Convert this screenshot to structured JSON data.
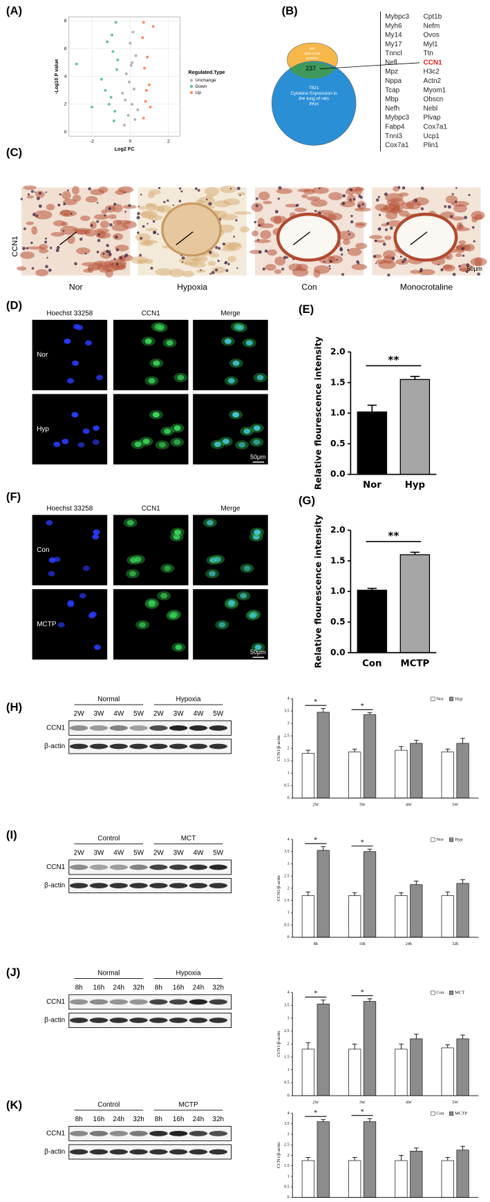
{
  "panel_labels": [
    "(A)",
    "(B)",
    "(C)",
    "(D)",
    "(E)",
    "(F)",
    "(G)",
    "(H)",
    "(I)",
    "(J)",
    "(K)"
  ],
  "venn": {
    "set_a_label": [
      "997",
      "differential",
      "proteins"
    ],
    "overlap": 237,
    "set_b_label": [
      "7821",
      "Cytokine Expression in",
      "the lung of rats",
      "PAH"
    ]
  },
  "gene_table": {
    "highlight": "CCN1",
    "highlight_color": "#e02020",
    "columns": [
      [
        "Mybpc3",
        "Myh6",
        "My14",
        "My17",
        "Tnncl",
        "Nefl",
        "Mpz",
        "Nppa",
        "Tcap",
        "Mbp",
        "Nefh",
        "Mybpc3",
        "Fabp4",
        "Tnni3",
        "Cox7a1"
      ],
      [
        "Cpt1b",
        "Nefm",
        "Ovos",
        "Myl1",
        "Ttn",
        "CCN1",
        "H3c2",
        "Actn2",
        "Myom1",
        "Obscn",
        "Nebl",
        "Plvap",
        "Cox7a1",
        "Ucp1",
        "Plin1"
      ]
    ]
  },
  "ihc": {
    "row_label": "CCN1",
    "labels": [
      "Nor",
      "Hypoxia",
      "Con",
      "Monocrotaline"
    ],
    "scale_bar": "50μm"
  },
  "fluorescence": [
    {
      "columns": [
        "Hoechst 33258",
        "CCN1",
        "Merge"
      ],
      "rows": [
        "Nor",
        "Hyp"
      ],
      "scale_bar": "50μm"
    },
    {
      "columns": [
        "Hoechst 33258",
        "CCN1",
        "Merge"
      ],
      "rows": [
        "Con",
        "MCTP"
      ],
      "scale_bar": "50μm"
    }
  ],
  "blots": [
    {
      "groups": [
        "Normal",
        "Hypoxia"
      ],
      "lanes": [
        "2W",
        "3W",
        "4W",
        "5W",
        "2W",
        "3W",
        "4W",
        "5W"
      ],
      "rows": [
        "CCN1",
        "β-actin"
      ]
    },
    {
      "groups": [
        "Control",
        "MCT"
      ],
      "lanes": [
        "2W",
        "3W",
        "4W",
        "5W",
        "2W",
        "3W",
        "4W",
        "5W"
      ],
      "rows": [
        "CCN1",
        "β-actin"
      ]
    },
    {
      "groups": [
        "Normal",
        "Hypoxia"
      ],
      "lanes": [
        "8h",
        "16h",
        "24h",
        "32h",
        "8h",
        "16h",
        "24h",
        "32h"
      ],
      "rows": [
        "CCN1",
        "β-actin"
      ]
    },
    {
      "groups": [
        "Control",
        "MCTP"
      ],
      "lanes": [
        "8h",
        "16h",
        "24h",
        "32h",
        "8h",
        "16h",
        "24h",
        "32h"
      ],
      "rows": [
        "CCN1",
        "β-actin"
      ]
    }
  ],
  "chart_data": [
    {
      "type": "scatter",
      "xlabel": "Log2 FC",
      "ylabel": "-Log10 P value",
      "legend_title": "Regulated.Type",
      "xlim": [
        -3.2,
        2.6
      ],
      "ylim": [
        -0.3,
        8.3
      ],
      "xticks": [
        -2,
        0,
        2
      ],
      "yticks": [
        0,
        2,
        4,
        6,
        8
      ],
      "grid": true,
      "series": [
        {
          "name": "Unchange",
          "color": "#b3b3b3",
          "x": [
            -0.3,
            -0.1,
            0.1,
            0.2,
            -0.2,
            0.3,
            0.0,
            -0.4,
            0.4,
            0.15,
            -0.05,
            0.05,
            0.25,
            -0.25,
            0.1
          ],
          "y": [
            0.5,
            1.2,
            2.0,
            3.1,
            4.2,
            5.5,
            6.4,
            2.8,
            1.6,
            7.2,
            3.6,
            4.8,
            0.9,
            2.3,
            5.0
          ]
        },
        {
          "name": "Down",
          "color": "#66c2a5",
          "x": [
            -0.8,
            -1.0,
            -1.3,
            -0.7,
            -0.9,
            -1.2,
            -2.8,
            -0.75,
            -1.5,
            -0.85,
            -1.1,
            -0.95,
            -2.0,
            -0.65
          ],
          "y": [
            1.5,
            2.5,
            3.0,
            4.5,
            5.8,
            6.5,
            4.9,
            7.9,
            3.8,
            0.8,
            2.0,
            7.0,
            1.8,
            5.2
          ]
        },
        {
          "name": "Up",
          "color": "#fc8d62",
          "x": [
            0.7,
            0.8,
            1.0,
            0.75,
            0.9,
            1.2,
            0.65,
            0.85,
            1.05,
            0.7
          ],
          "y": [
            1.0,
            2.2,
            3.4,
            4.6,
            5.4,
            7.6,
            6.8,
            3.0,
            1.8,
            7.9
          ]
        }
      ]
    },
    {
      "type": "bar",
      "ylabel": "Relative flourescence intensity",
      "categories": [
        "Nor",
        "Hyp"
      ],
      "values": [
        1.02,
        1.55
      ],
      "errors": [
        0.11,
        0.05
      ],
      "colors": [
        "#000000",
        "#a6a6a6"
      ],
      "ylim": [
        0,
        2
      ],
      "yticks": [
        {
          "value": 0,
          "label": "0.0"
        },
        0.5,
        {
          "value": 1,
          "label": "1.0"
        },
        1.5,
        {
          "value": 2,
          "label": "2.0"
        }
      ],
      "significance": "**"
    },
    {
      "type": "bar",
      "ylabel": "Relative flourescence intensity",
      "categories": [
        "Con",
        "MCTP"
      ],
      "values": [
        1.02,
        1.6
      ],
      "errors": [
        0.03,
        0.04
      ],
      "colors": [
        "#000000",
        "#a6a6a6"
      ],
      "ylim": [
        0,
        2
      ],
      "yticks": [
        {
          "value": 0,
          "label": "0.0"
        },
        0.5,
        {
          "value": 1,
          "label": "1.0"
        },
        1.5,
        {
          "value": 2,
          "label": "2.0"
        }
      ],
      "significance": "**"
    },
    {
      "type": "grouped-bar",
      "ylabel": "CCN1/β-actin",
      "categories": [
        "2W",
        "3W",
        "4W",
        "5W"
      ],
      "ylim": [
        0,
        4
      ],
      "yticks": [
        0,
        0.5,
        1,
        1.5,
        2,
        2.5,
        3,
        3.5,
        4
      ],
      "series": [
        {
          "name": "Nor",
          "color": "#ffffff",
          "values": [
            1.8,
            1.85,
            1.92,
            1.85
          ],
          "errors": [
            0.12,
            0.12,
            0.15,
            0.12
          ]
        },
        {
          "name": "Hyp",
          "color": "#8c8c8c",
          "values": [
            3.45,
            3.35,
            2.2,
            2.2
          ],
          "errors": [
            0.15,
            0.08,
            0.12,
            0.2
          ]
        }
      ],
      "annotations": [
        {
          "category": "2W",
          "text": "*"
        },
        {
          "category": "3W",
          "text": "*"
        }
      ]
    },
    {
      "type": "grouped-bar",
      "ylabel": "CCN1/β-actin",
      "categories": [
        "8h",
        "16h",
        "24h",
        "32h"
      ],
      "ylim": [
        0,
        4
      ],
      "yticks": [
        0,
        0.5,
        1,
        1.5,
        2,
        2.5,
        3,
        3.5,
        4
      ],
      "series": [
        {
          "name": "Nor",
          "color": "#ffffff",
          "values": [
            1.7,
            1.7,
            1.7,
            1.7
          ],
          "errors": [
            0.15,
            0.12,
            0.12,
            0.15
          ]
        },
        {
          "name": "Hyp",
          "color": "#8c8c8c",
          "values": [
            3.55,
            3.5,
            2.15,
            2.2
          ],
          "errors": [
            0.15,
            0.1,
            0.15,
            0.15
          ]
        }
      ],
      "annotations": [
        {
          "category": "8h",
          "text": "*"
        },
        {
          "category": "16h",
          "text": "*"
        }
      ]
    },
    {
      "type": "grouped-bar",
      "ylabel": "CCN1/β-actin",
      "categories": [
        "2W",
        "3W",
        "4W",
        "5W"
      ],
      "ylim": [
        0,
        4
      ],
      "yticks": [
        0,
        0.5,
        1,
        1.5,
        2,
        2.5,
        3,
        3.5,
        4
      ],
      "series": [
        {
          "name": "Con",
          "color": "#ffffff",
          "values": [
            1.8,
            1.8,
            1.8,
            1.85
          ],
          "errors": [
            0.25,
            0.2,
            0.2,
            0.12
          ]
        },
        {
          "name": "MCT",
          "color": "#8c8c8c",
          "values": [
            3.55,
            3.65,
            2.2,
            2.2
          ],
          "errors": [
            0.15,
            0.1,
            0.18,
            0.15
          ]
        }
      ],
      "annotations": [
        {
          "category": "2W",
          "text": "*"
        },
        {
          "category": "3W",
          "text": "*"
        }
      ]
    },
    {
      "type": "grouped-bar",
      "ylabel": "CCN1/β-actin",
      "categories": [
        "8h",
        "16h",
        "24h",
        "32h"
      ],
      "ylim": [
        0,
        4
      ],
      "yticks": [
        0,
        0.5,
        1,
        1.5,
        2,
        2.5,
        3,
        3.5,
        4
      ],
      "series": [
        {
          "name": "Con",
          "color": "#ffffff",
          "values": [
            1.75,
            1.75,
            1.75,
            1.75
          ],
          "errors": [
            0.15,
            0.15,
            0.25,
            0.15
          ]
        },
        {
          "name": "MCTP",
          "color": "#8c8c8c",
          "values": [
            3.6,
            3.6,
            2.2,
            2.25
          ],
          "errors": [
            0.1,
            0.15,
            0.15,
            0.18
          ]
        }
      ],
      "annotations": [
        {
          "category": "8h",
          "text": "*"
        },
        {
          "category": "16h",
          "text": "*"
        }
      ]
    }
  ]
}
